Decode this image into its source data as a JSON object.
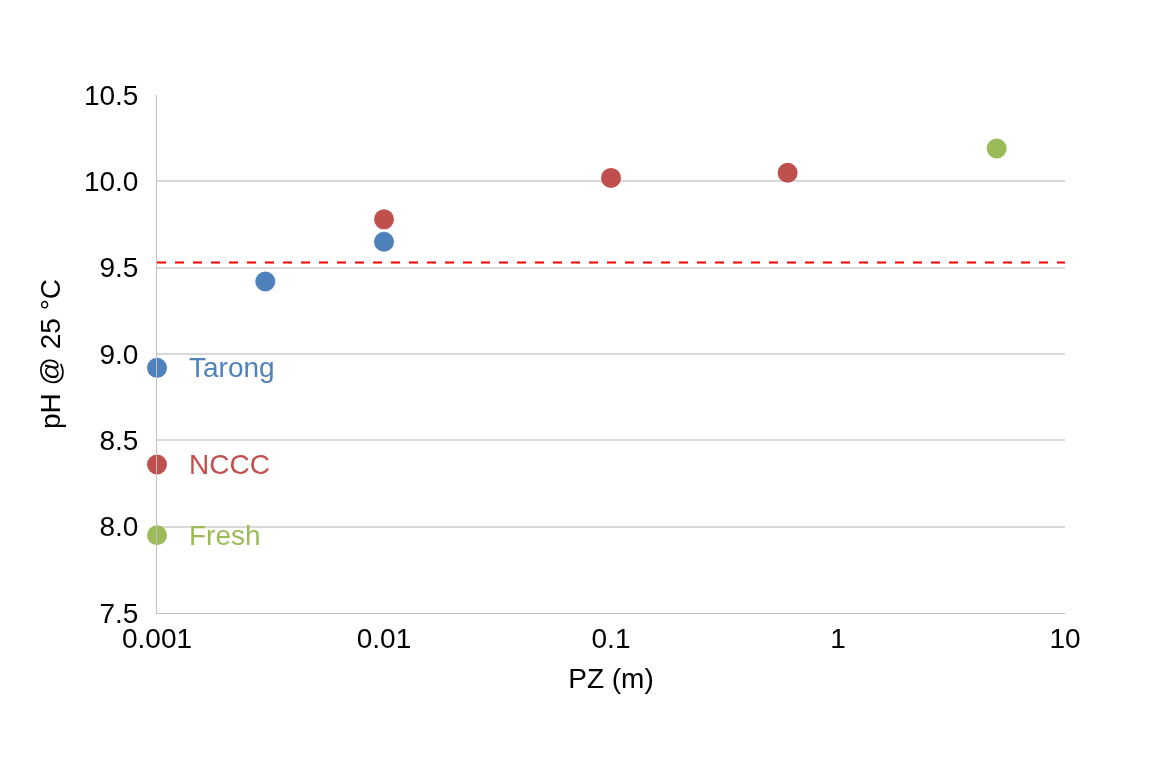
{
  "chart_data": {
    "type": "scatter",
    "xlabel": "PZ (m)",
    "ylabel": "pH @ 25 °C",
    "log": "x",
    "xlim": [
      0.001,
      10
    ],
    "xticks": [
      0.001,
      0.01,
      0.1,
      1,
      10
    ],
    "ylim": [
      7.5,
      10.5
    ],
    "yticks": [
      {
        "value": 7.5,
        "label": "7.5"
      },
      {
        "value": 8,
        "label": "8.0"
      },
      {
        "value": 8.5,
        "label": "8.5"
      },
      {
        "value": 9,
        "label": "9.0"
      },
      {
        "value": 9.5,
        "label": "9.5"
      },
      {
        "value": 10,
        "label": "10.0"
      },
      {
        "value": 10.5,
        "label": "10.5"
      }
    ],
    "grid": "y",
    "legend": false,
    "marker": "circle",
    "series": [
      {
        "name": "Tarong",
        "color": "#4f81bd",
        "x": [
          0.001,
          0.003,
          0.01
        ],
        "values": [
          8.92,
          9.42,
          9.65
        ]
      },
      {
        "name": "NCCC",
        "color": "#c0504d",
        "x": [
          0.001,
          0.01,
          0.1,
          0.6
        ],
        "values": [
          8.36,
          9.78,
          10.02,
          10.05
        ]
      },
      {
        "name": "Fresh",
        "color": "#9bbb59",
        "x": [
          0.001,
          5
        ],
        "values": [
          7.95,
          10.19
        ]
      }
    ],
    "ref_lines": [
      {
        "axis": "y",
        "value": 9.53,
        "color": "#ff0000",
        "line_style": "dashed"
      }
    ]
  }
}
